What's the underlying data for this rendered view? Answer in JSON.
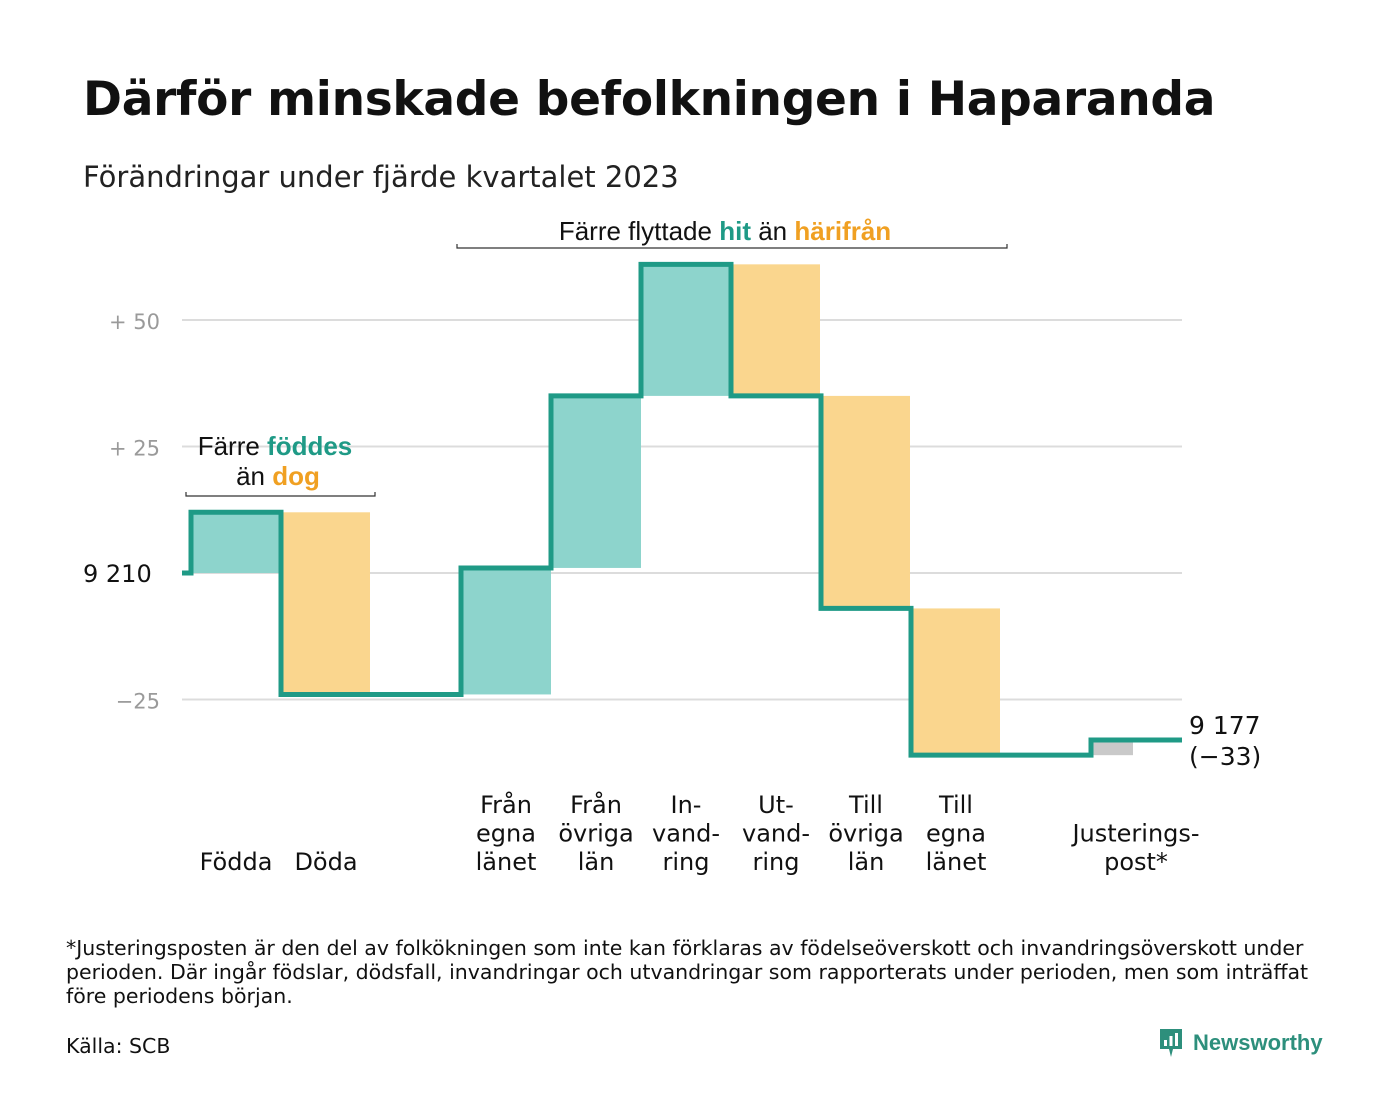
{
  "title": "Därför minskade befolkningen i Haparanda",
  "subtitle": "Förändringar under fjärde kvartalet 2023",
  "colors": {
    "inflow": "#8dd4cc",
    "outflow": "#fad68e",
    "adjustment": "#c9c9c9",
    "line": "#1f9a86",
    "teal_text": "#1f9a86",
    "orange_text": "#f0a022",
    "grid": "#dcdcdc"
  },
  "chart_data": {
    "type": "waterfall",
    "start_value": 9210,
    "start_label": "9 210",
    "end_label": "9 177",
    "end_change_label": "(−33)",
    "ylim": [
      -38,
      62
    ],
    "y_ticks": [
      {
        "value": 50,
        "label": "+  50"
      },
      {
        "value": 25,
        "label": "+  25"
      },
      {
        "value": 0,
        "label": ""
      },
      {
        "value": -25,
        "label": "−25"
      }
    ],
    "grid": true,
    "bars": [
      {
        "label": [
          "Födda"
        ],
        "change": 12,
        "kind": "in"
      },
      {
        "label": [
          "Döda"
        ],
        "change": -36,
        "kind": "out"
      },
      {
        "label": [],
        "change": 0,
        "kind": "gap"
      },
      {
        "label": [
          "Från",
          "egna",
          "länet"
        ],
        "change": 25,
        "kind": "in"
      },
      {
        "label": [
          "Från",
          "övriga",
          "län"
        ],
        "change": 34,
        "kind": "in"
      },
      {
        "label": [
          "In-",
          "vand-",
          "ring"
        ],
        "change": 26,
        "kind": "in"
      },
      {
        "label": [
          "Ut-",
          "vand-",
          "ring"
        ],
        "change": -26,
        "kind": "out"
      },
      {
        "label": [
          "Till",
          "övriga",
          "län"
        ],
        "change": -42,
        "kind": "out"
      },
      {
        "label": [
          "Till",
          "egna",
          "länet"
        ],
        "change": -29,
        "kind": "out"
      },
      {
        "label": [],
        "change": 0,
        "kind": "gap"
      },
      {
        "label": [
          "Justerings-",
          "post*"
        ],
        "change": 3,
        "kind": "adj"
      }
    ],
    "annotations": {
      "births": {
        "line1_a": "Färre ",
        "line1_b": "föddes",
        "line2_a": "än ",
        "line2_b": "dog"
      },
      "migration": {
        "a": "Färre flyttade ",
        "b": "hit",
        "c": " än ",
        "d": "härifrån"
      }
    }
  },
  "footnote": "*Justeringsposten är den del av folkökningen som inte kan förklaras av födelseöverskott och invandringsöverskott under perioden. Där ingår födslar, dödsfall, invandringar och utvandringar som rapporterats under perioden, men som inträffat före periodens början.",
  "source": "Källa: SCB",
  "brand": "Newsworthy"
}
